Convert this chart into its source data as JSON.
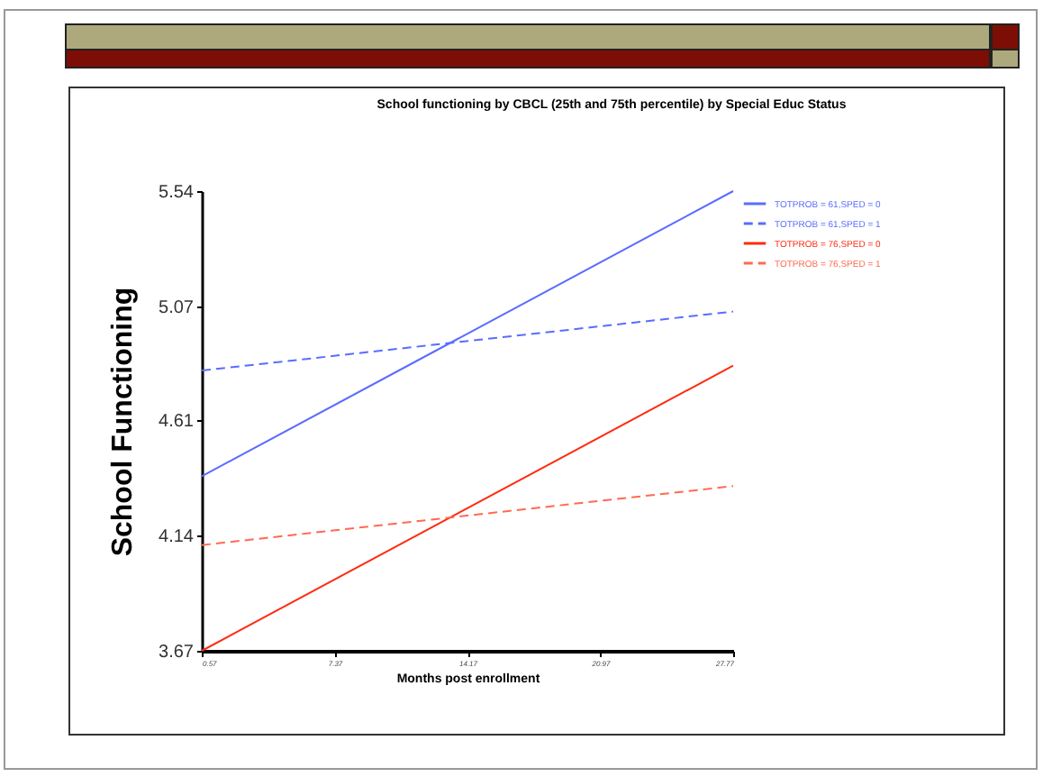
{
  "chart_data": {
    "type": "line",
    "title": "School functioning by CBCL (25th and 75th percentile) by Special Educ Status",
    "xlabel": "Months post enrollment",
    "ylabel": "School Functioning",
    "x": [
      0.57,
      27.77
    ],
    "series": [
      {
        "name": "TOTPROB = 61,SPED = 0",
        "color": "#5a6cff",
        "line_style": "solid",
        "values": [
          4.38,
          5.54
        ]
      },
      {
        "name": "TOTPROB = 61,SPED = 1",
        "color": "#5a6cff",
        "line_style": "dashed",
        "values": [
          4.81,
          5.05
        ]
      },
      {
        "name": "TOTPROB = 76,SPED = 0",
        "color": "#ff2a10",
        "line_style": "solid",
        "values": [
          3.67,
          4.83
        ]
      },
      {
        "name": "TOTPROB = 76,SPED = 1",
        "color": "#ff6a50",
        "line_style": "dashed",
        "values": [
          4.1,
          4.34
        ]
      }
    ],
    "xlim": [
      0.57,
      27.77
    ],
    "xticks": [
      0.57,
      7.37,
      14.17,
      20.97,
      27.77
    ],
    "ylim": [
      3.67,
      5.54
    ],
    "yticks": [
      3.67,
      4.14,
      4.61,
      5.07,
      5.54
    ],
    "grid": false,
    "legend": "top right",
    "marker": "none"
  }
}
